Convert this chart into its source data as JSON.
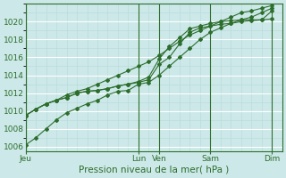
{
  "title": "",
  "xlabel": "Pression niveau de la mer( hPa )",
  "background_color": "#cce8e8",
  "plot_bg_color": "#cce8e8",
  "grid_major_color": "#ffffff",
  "grid_minor_color": "#b8d8d8",
  "line_color": "#2d6e2d",
  "ylim": [
    1005.5,
    1022.0
  ],
  "yticks": [
    1006,
    1008,
    1010,
    1012,
    1014,
    1016,
    1018,
    1020
  ],
  "x_tick_labels": [
    "Jeu",
    "Lun",
    "Ven",
    "Sam",
    "Dim"
  ],
  "x_tick_positions": [
    0,
    11,
    13,
    18,
    24
  ],
  "x_day_lines": [
    0,
    11,
    13,
    18,
    24
  ],
  "xlim": [
    0,
    25
  ],
  "series": [
    [
      1006.2,
      1007.0,
      1008.0,
      1009.0,
      1009.8,
      1010.3,
      1010.8,
      1011.2,
      1011.8,
      1012.2,
      1012.3,
      1013.0,
      1013.2,
      1014.0,
      1015.0,
      1016.0,
      1017.0,
      1018.0,
      1018.8,
      1019.3,
      1019.8,
      1020.2,
      1020.5,
      1021.0,
      1021.5
    ],
    [
      1009.5,
      1010.2,
      1010.8,
      1011.2,
      1011.5,
      1012.0,
      1012.2,
      1012.3,
      1012.5,
      1012.8,
      1013.0,
      1013.2,
      1013.5,
      1015.2,
      1016.0,
      1017.5,
      1018.8,
      1019.3,
      1019.5,
      1019.7,
      1019.8,
      1020.0,
      1020.1,
      1020.2,
      1020.3
    ],
    [
      1009.5,
      1010.2,
      1010.8,
      1011.2,
      1011.5,
      1012.0,
      1012.2,
      1012.3,
      1012.5,
      1012.8,
      1013.0,
      1013.3,
      1013.8,
      1015.8,
      1017.2,
      1018.2,
      1019.2,
      1019.5,
      1019.8,
      1020.0,
      1020.1,
      1020.2,
      1020.2,
      1020.2,
      1021.2
    ],
    [
      1009.5,
      1010.2,
      1010.8,
      1011.2,
      1011.8,
      1012.2,
      1012.5,
      1013.0,
      1013.5,
      1014.0,
      1014.5,
      1015.0,
      1015.5,
      1016.2,
      1017.0,
      1017.8,
      1018.5,
      1019.0,
      1019.5,
      1020.0,
      1020.5,
      1021.0,
      1021.2,
      1021.5,
      1021.8
    ]
  ],
  "n_points": 25
}
